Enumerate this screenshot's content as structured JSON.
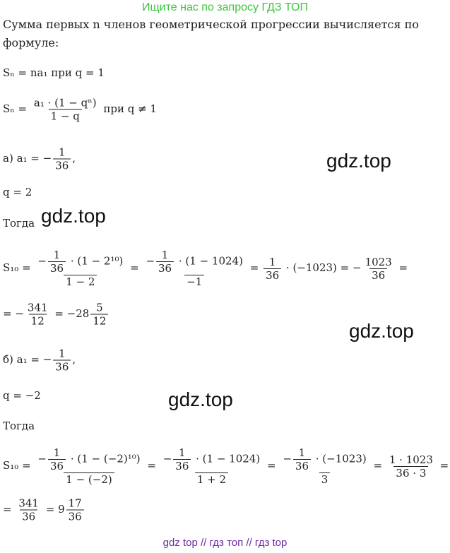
{
  "header": "Ищите нас по запросу ГДЗ ТОП",
  "intro": "Сумма первых n членов геометрической прогрессии вычисляется по формуле:",
  "lines": [
    {
      "tokens": [
        "Sₙ = na₁ при q = 1"
      ]
    },
    {
      "tokens": [
        "Sₙ = ",
        {
          "num": "a₁ · (1 − qⁿ)",
          "den": "1 − q"
        },
        " при q ≠ 1"
      ]
    },
    {
      "tokens": [
        "а) a₁ = −",
        {
          "num": "1",
          "den": "36"
        },
        ","
      ]
    },
    {
      "tokens": [
        "q = 2"
      ]
    },
    {
      "tokens": [
        "Тогда"
      ]
    },
    {
      "tokens": [
        "S₁₀ = ",
        {
          "num": [
            "−",
            {
              "num": "1",
              "den": "36"
            },
            " · (1 − 2¹⁰)"
          ],
          "den": "1 − 2"
        },
        " = ",
        {
          "num": [
            "−",
            {
              "num": "1",
              "den": "36"
            },
            " · (1 − 1024)"
          ],
          "den": "−1"
        },
        " = ",
        {
          "num": "1",
          "den": "36"
        },
        " · (−1023) = −",
        {
          "num": "1023",
          "den": "36"
        },
        " ="
      ]
    },
    {
      "tokens": [
        "= −",
        {
          "num": "341",
          "den": "12"
        },
        " = −28",
        {
          "num": "5",
          "den": "12"
        }
      ]
    },
    {
      "tokens": [
        "б) a₁ = −",
        {
          "num": "1",
          "den": "36"
        },
        ","
      ]
    },
    {
      "tokens": [
        "q = −2"
      ]
    },
    {
      "tokens": [
        "Тогда"
      ]
    },
    {
      "tokens": [
        "S₁₀ = ",
        {
          "num": [
            "−",
            {
              "num": "1",
              "den": "36"
            },
            " · (1 − (−2)¹⁰)"
          ],
          "den": "1 − (−2)"
        },
        " = ",
        {
          "num": [
            "−",
            {
              "num": "1",
              "den": "36"
            },
            " · (1 − 1024)"
          ],
          "den": "1 + 2"
        },
        " = ",
        {
          "num": [
            "−",
            {
              "num": "1",
              "den": "36"
            },
            " · (−1023)"
          ],
          "den": "3"
        },
        " = ",
        {
          "num": "1 · 1023",
          "den": "36 · 3"
        },
        " ="
      ]
    },
    {
      "tokens": [
        "= ",
        {
          "num": "341",
          "den": "36"
        },
        " = 9",
        {
          "num": "17",
          "den": "36"
        }
      ]
    }
  ],
  "watermarks": [
    "gdz.top",
    "gdz.top",
    "gdz.top",
    "gdz.top"
  ],
  "footer": "gdz top  //  гдз топ  //  гдз top"
}
